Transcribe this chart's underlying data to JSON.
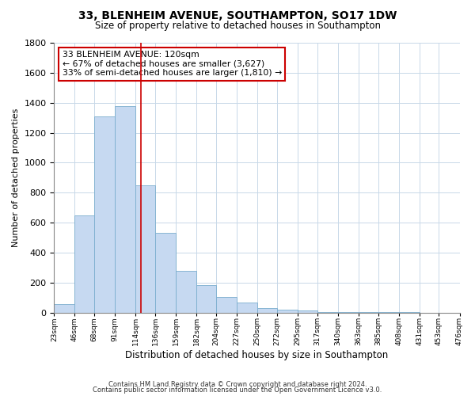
{
  "title": "33, BLENHEIM AVENUE, SOUTHAMPTON, SO17 1DW",
  "subtitle": "Size of property relative to detached houses in Southampton",
  "xlabel": "Distribution of detached houses by size in Southampton",
  "ylabel": "Number of detached properties",
  "bar_edges": [
    23,
    46,
    68,
    91,
    114,
    136,
    159,
    182,
    204,
    227,
    250,
    272,
    295,
    317,
    340,
    363,
    385,
    408,
    431,
    453,
    476
  ],
  "bar_heights": [
    55,
    645,
    1310,
    1375,
    850,
    530,
    280,
    185,
    105,
    68,
    30,
    20,
    12,
    5,
    2,
    2,
    1,
    1,
    0,
    0
  ],
  "bar_color": "#c6d9f1",
  "bar_edgecolor": "#7aadce",
  "vline_x": 120,
  "vline_color": "#cc0000",
  "ylim": [
    0,
    1800
  ],
  "annotation_title": "33 BLENHEIM AVENUE: 120sqm",
  "annotation_line1": "← 67% of detached houses are smaller (3,627)",
  "annotation_line2": "33% of semi-detached houses are larger (1,810) →",
  "annotation_box_edgecolor": "#cc0000",
  "footnote1": "Contains HM Land Registry data © Crown copyright and database right 2024.",
  "footnote2": "Contains public sector information licensed under the Open Government Licence v3.0.",
  "tick_labels": [
    "23sqm",
    "46sqm",
    "68sqm",
    "91sqm",
    "114sqm",
    "136sqm",
    "159sqm",
    "182sqm",
    "204sqm",
    "227sqm",
    "250sqm",
    "272sqm",
    "295sqm",
    "317sqm",
    "340sqm",
    "363sqm",
    "385sqm",
    "408sqm",
    "431sqm",
    "453sqm",
    "476sqm"
  ],
  "yticks": [
    0,
    200,
    400,
    600,
    800,
    1000,
    1200,
    1400,
    1600,
    1800
  ]
}
